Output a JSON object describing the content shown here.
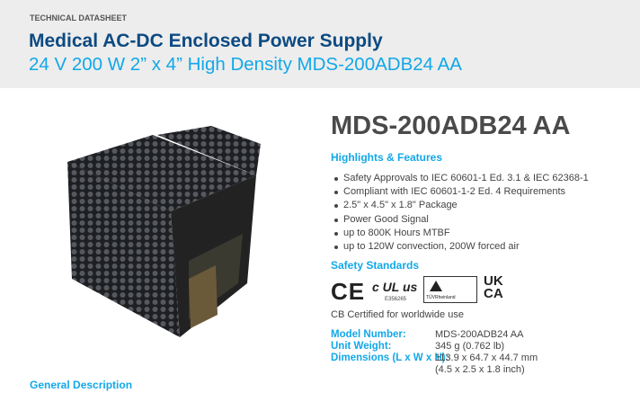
{
  "header": {
    "kicker": "TECHNICAL DATASHEET",
    "title": "Medical AC-DC Enclosed Power Supply",
    "subtitle": "24 V 200 W 2” x 4” High Density MDS-200ADB24 AA"
  },
  "product": {
    "part_number": "MDS-200ADB24 AA",
    "image_icon": "power-supply-photo"
  },
  "highlights": {
    "heading": "Highlights & Features",
    "items": [
      "Safety Approvals to IEC 60601-1 Ed. 3.1 & IEC 62368-1",
      "Compliant with IEC 60601-1-2 Ed. 4 Requirements",
      "2.5\" x 4.5\" x 1.8\" Package",
      "Power Good Signal",
      "up to 800K Hours MTBF",
      "up to 120W convection, 200W forced air"
    ]
  },
  "safety": {
    "heading": "Safety Standards",
    "ce": "CE",
    "ul": "c UL us",
    "ul_file": "E356265",
    "tuv": "TÜVRheinland",
    "ukca": [
      "UK",
      "CA"
    ],
    "cb_text": "CB Certified for worldwide use"
  },
  "specs": [
    {
      "label": "Model Number:",
      "value": "MDS-200ADB24 AA"
    },
    {
      "label": "Unit Weight:",
      "value": "345 g (0.762 lb)"
    },
    {
      "label": "Dimensions (L x W x H):",
      "value": "113.9 x 64.7 x 44.7 mm",
      "value2": "(4.5 x 2.5 x 1.8 inch)"
    }
  ],
  "general": {
    "heading": "General Description"
  },
  "colors": {
    "navy": "#0d4a82",
    "accent": "#12a8e8",
    "band": "#ededed"
  }
}
